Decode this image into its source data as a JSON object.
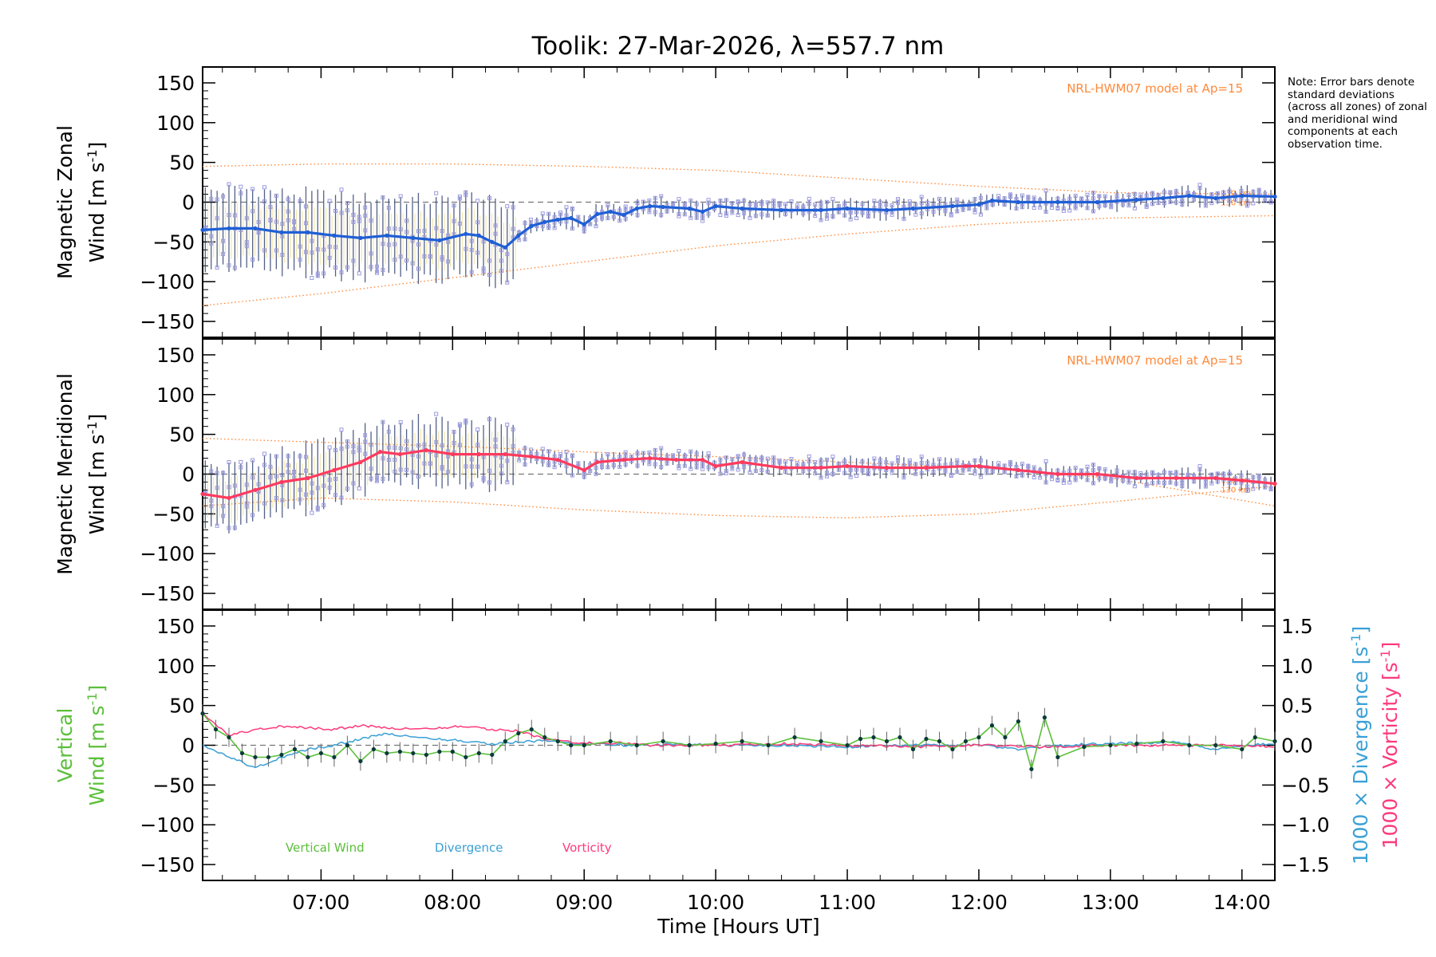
{
  "title": "Toolik: 27-Mar-2026, λ=557.7 nm",
  "note": "Note: Error bars denote standard deviations (across all zones) of zonal and meridional wind components at each observation time.",
  "colors": {
    "zonal": "#1f5fd6",
    "meridional": "#ff3a5e",
    "vertical": "#5bbf3a",
    "divergence": "#3aa0d6",
    "vorticity": "#ff3a7a",
    "model": "#ff8a3a",
    "zone_scatter": "#9a9ae0",
    "errorbar": "#2a3a6a"
  },
  "chart_data": [
    {
      "type": "line",
      "panel": "zonal",
      "ylabel_line1": "Magnetic Zonal",
      "ylabel_line2": "Wind [m s",
      "ylabel_sup": "-1",
      "ylabel_end": "]",
      "xlim": [
        6.1,
        14.25
      ],
      "ylim": [
        -170,
        170
      ],
      "yticks": [
        -150,
        -100,
        -50,
        0,
        50,
        100,
        150
      ],
      "model_label": "NRL-HWM07 model at Ap=15",
      "model_alt_labels": [
        "130 km",
        "130 km"
      ],
      "series": [
        {
          "name": "Zonal Wind",
          "x": [
            6.1,
            6.3,
            6.5,
            6.7,
            6.9,
            7.1,
            7.3,
            7.5,
            7.7,
            7.9,
            8.1,
            8.2,
            8.3,
            8.4,
            8.5,
            8.6,
            8.7,
            8.8,
            8.9,
            9.0,
            9.1,
            9.2,
            9.3,
            9.4,
            9.5,
            9.6,
            9.8,
            9.9,
            10.0,
            10.2,
            10.5,
            10.8,
            11.0,
            11.3,
            11.5,
            11.8,
            12.0,
            12.1,
            12.3,
            12.6,
            12.9,
            13.2,
            13.4,
            13.6,
            13.8,
            14.0,
            14.25
          ],
          "values": [
            -35,
            -33,
            -33,
            -38,
            -38,
            -42,
            -45,
            -42,
            -45,
            -48,
            -40,
            -42,
            -50,
            -57,
            -42,
            -30,
            -25,
            -22,
            -20,
            -28,
            -15,
            -12,
            -16,
            -8,
            -5,
            -6,
            -8,
            -12,
            -5,
            -8,
            -10,
            -10,
            -8,
            -10,
            -8,
            -5,
            -3,
            2,
            0,
            0,
            0,
            3,
            5,
            8,
            5,
            8,
            7
          ]
        },
        {
          "name": "Model upper envelope",
          "x": [
            6.1,
            7.0,
            8.0,
            9.0,
            10.0,
            11.0,
            12.0,
            13.0,
            14.25
          ],
          "values": [
            45,
            48,
            48,
            45,
            40,
            30,
            20,
            12,
            10
          ]
        },
        {
          "name": "Model lower envelope",
          "x": [
            6.1,
            7.0,
            8.0,
            9.0,
            10.0,
            11.0,
            12.0,
            13.0,
            14.25
          ],
          "values": [
            -130,
            -115,
            -95,
            -75,
            -55,
            -40,
            -28,
            -20,
            -17
          ]
        }
      ]
    },
    {
      "type": "line",
      "panel": "meridional",
      "ylabel_line1": "Magnetic Meridional",
      "ylabel_line2": "Wind [m s",
      "ylabel_sup": "-1",
      "ylabel_end": "]",
      "xlim": [
        6.1,
        14.25
      ],
      "ylim": [
        -170,
        170
      ],
      "yticks": [
        -150,
        -100,
        -50,
        0,
        50,
        100,
        150
      ],
      "model_label": "NRL-HWM07 model at Ap=15",
      "model_alt_labels": [
        "130 km",
        "130 km"
      ],
      "series": [
        {
          "name": "Meridional Wind",
          "x": [
            6.1,
            6.3,
            6.5,
            6.7,
            6.9,
            7.1,
            7.3,
            7.45,
            7.6,
            7.8,
            8.0,
            8.2,
            8.4,
            8.6,
            8.8,
            9.0,
            9.1,
            9.3,
            9.5,
            9.7,
            9.9,
            10.0,
            10.2,
            10.5,
            10.8,
            11.0,
            11.3,
            11.6,
            11.9,
            12.0,
            12.3,
            12.6,
            12.9,
            13.2,
            13.5,
            13.8,
            14.0,
            14.25
          ],
          "values": [
            -25,
            -30,
            -20,
            -10,
            -5,
            5,
            15,
            28,
            25,
            30,
            25,
            25,
            25,
            22,
            18,
            5,
            15,
            18,
            20,
            18,
            18,
            10,
            15,
            8,
            8,
            10,
            8,
            8,
            10,
            10,
            5,
            0,
            0,
            -5,
            -5,
            -5,
            -8,
            -12
          ]
        },
        {
          "name": "Model upper envelope",
          "x": [
            6.1,
            7.0,
            8.0,
            9.0,
            10.0,
            11.0,
            12.0,
            13.0,
            14.25
          ],
          "values": [
            45,
            40,
            35,
            28,
            22,
            15,
            8,
            -5,
            -40
          ]
        },
        {
          "name": "Model lower envelope",
          "x": [
            6.1,
            7.0,
            8.0,
            9.0,
            10.0,
            11.0,
            12.0,
            13.0,
            14.25
          ],
          "values": [
            -40,
            -30,
            -35,
            -45,
            -52,
            -55,
            -50,
            -35,
            -15
          ]
        }
      ]
    },
    {
      "type": "line",
      "panel": "vertical",
      "ylabel_line1": "Vertical",
      "ylabel_line2": "Wind [m s",
      "ylabel_sup": "-1",
      "ylabel_end": "]",
      "xlabel": "Time [Hours UT]",
      "xlim": [
        6.1,
        14.25
      ],
      "ylim": [
        -170,
        170
      ],
      "yticks": [
        -150,
        -100,
        -50,
        0,
        50,
        100,
        150
      ],
      "xticks": [
        7,
        8,
        9,
        10,
        11,
        12,
        13,
        14
      ],
      "xtick_labels": [
        "07:00",
        "08:00",
        "09:00",
        "10:00",
        "11:00",
        "12:00",
        "13:00",
        "14:00"
      ],
      "y2lim": [
        -1.7,
        1.7
      ],
      "y2ticks": [
        -1.5,
        -1.0,
        -0.5,
        0.0,
        0.5,
        1.0,
        1.5
      ],
      "y2tick_labels": [
        "−1.5",
        "−1.0",
        "−0.5",
        "0.0",
        "0.5",
        "1.0",
        "1.5"
      ],
      "y2label_div": "1000 × Divergence [s",
      "y2label_vort": "1000 × Vorticity [s",
      "y2label_sup": "-1",
      "y2label_end": "]",
      "legend": [
        "Vertical Wind",
        "Divergence",
        "Vorticity"
      ],
      "series": [
        {
          "name": "Vertical Wind",
          "x": [
            6.1,
            6.2,
            6.3,
            6.4,
            6.5,
            6.6,
            6.7,
            6.8,
            6.9,
            7.0,
            7.1,
            7.2,
            7.3,
            7.4,
            7.5,
            7.6,
            7.7,
            7.8,
            7.9,
            8.0,
            8.1,
            8.2,
            8.3,
            8.4,
            8.5,
            8.6,
            8.7,
            8.8,
            8.9,
            9.0,
            9.2,
            9.4,
            9.6,
            9.8,
            10.0,
            10.2,
            10.4,
            10.6,
            10.8,
            11.0,
            11.1,
            11.2,
            11.3,
            11.4,
            11.5,
            11.6,
            11.7,
            11.8,
            11.9,
            12.0,
            12.1,
            12.2,
            12.3,
            12.4,
            12.5,
            12.6,
            12.8,
            13.0,
            13.2,
            13.4,
            13.6,
            13.8,
            14.0,
            14.1,
            14.25
          ],
          "values": [
            40,
            20,
            10,
            -10,
            -15,
            -15,
            -12,
            -5,
            -15,
            -10,
            -15,
            0,
            -20,
            -5,
            -10,
            -8,
            -10,
            -12,
            -8,
            -8,
            -15,
            -10,
            -12,
            5,
            15,
            20,
            10,
            5,
            0,
            0,
            5,
            0,
            5,
            0,
            2,
            5,
            0,
            10,
            5,
            0,
            8,
            10,
            5,
            10,
            -5,
            8,
            5,
            -5,
            5,
            10,
            25,
            10,
            30,
            -30,
            35,
            -15,
            -2,
            0,
            2,
            5,
            0,
            0,
            -5,
            10,
            5
          ]
        },
        {
          "name": "Divergence",
          "x": [
            6.1,
            6.3,
            6.5,
            6.7,
            6.9,
            7.1,
            7.3,
            7.5,
            7.7,
            7.9,
            8.1,
            8.3,
            8.5,
            8.7,
            8.9,
            9.1,
            9.3,
            9.5,
            9.7,
            10.0,
            10.5,
            11.0,
            11.5,
            12.0,
            12.3,
            12.6,
            13.0,
            13.5,
            13.8,
            14.0,
            14.25
          ],
          "values": [
            0.0,
            -0.15,
            -0.28,
            -0.15,
            -0.05,
            0.0,
            0.08,
            0.15,
            0.1,
            0.08,
            0.05,
            0.02,
            0.04,
            0.06,
            0.02,
            0.02,
            0.0,
            0.0,
            0.02,
            0.0,
            0.0,
            -0.02,
            0.0,
            0.0,
            -0.05,
            0.0,
            0.02,
            0.04,
            -0.06,
            0.0,
            0.02
          ]
        },
        {
          "name": "Vorticity",
          "x": [
            6.1,
            6.3,
            6.5,
            6.7,
            6.9,
            7.1,
            7.3,
            7.5,
            7.7,
            7.9,
            8.1,
            8.3,
            8.5,
            8.7,
            8.9,
            9.1,
            9.3,
            9.5,
            9.7,
            10.0,
            10.5,
            11.0,
            11.5,
            12.0,
            12.5,
            13.0,
            13.5,
            14.0,
            14.25
          ],
          "values": [
            0.4,
            0.12,
            0.2,
            0.24,
            0.22,
            0.2,
            0.25,
            0.22,
            0.2,
            0.22,
            0.24,
            0.2,
            0.18,
            0.08,
            0.04,
            0.02,
            0.03,
            0.0,
            0.0,
            0.0,
            0.02,
            0.0,
            -0.02,
            0.0,
            -0.02,
            0.0,
            0.0,
            0.0,
            -0.02
          ]
        }
      ]
    }
  ]
}
